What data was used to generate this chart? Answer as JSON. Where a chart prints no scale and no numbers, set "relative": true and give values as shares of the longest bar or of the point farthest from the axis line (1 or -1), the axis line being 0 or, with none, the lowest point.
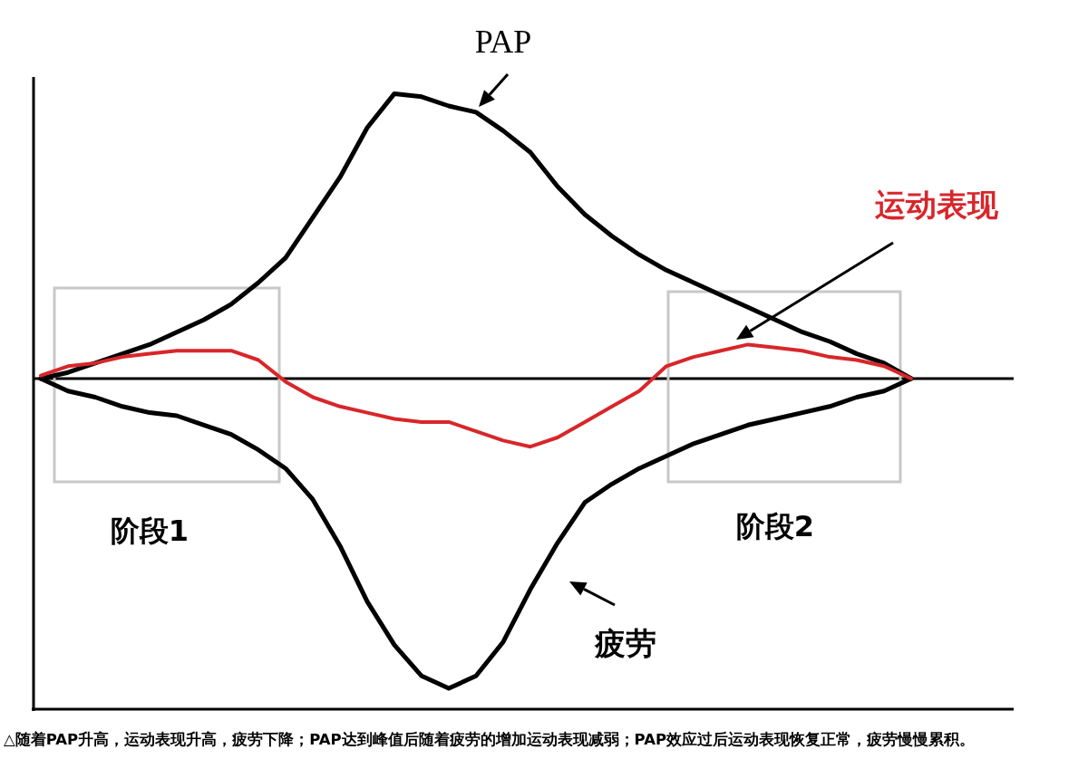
{
  "chart_data": {
    "type": "line",
    "relative": true,
    "categories": [
      null,
      null,
      null,
      null,
      null,
      null,
      null,
      null,
      null,
      null,
      null,
      null,
      null,
      null,
      null,
      null,
      null,
      null,
      null,
      null,
      null,
      null,
      null,
      null,
      null,
      null,
      null,
      null,
      null,
      null,
      null,
      null,
      null
    ],
    "series": [
      {
        "name": "PAP",
        "color": "#000000",
        "values": [
          0,
          0.02,
          0.05,
          0.08,
          0.11,
          0.15,
          0.19,
          0.24,
          0.31,
          0.39,
          0.52,
          0.65,
          0.81,
          0.92,
          0.91,
          0.88,
          0.86,
          0.8,
          0.73,
          0.62,
          0.53,
          0.46,
          0.4,
          0.35,
          0.31,
          0.27,
          0.23,
          0.19,
          0.15,
          0.12,
          0.08,
          0.05,
          0
        ]
      },
      {
        "name": "运动表现",
        "color": "#d8262b",
        "values": [
          0.01,
          0.04,
          0.05,
          0.07,
          0.08,
          0.09,
          0.09,
          0.09,
          0.06,
          -0.01,
          -0.06,
          -0.09,
          -0.11,
          -0.13,
          -0.14,
          -0.14,
          -0.17,
          -0.2,
          -0.22,
          -0.19,
          -0.14,
          -0.09,
          -0.04,
          0.04,
          0.07,
          0.09,
          0.11,
          0.1,
          0.09,
          0.07,
          0.06,
          0.04,
          0
        ]
      },
      {
        "name": "疲劳",
        "color": "#000000",
        "values": [
          0,
          -0.04,
          -0.06,
          -0.09,
          -0.11,
          -0.12,
          -0.15,
          -0.18,
          -0.23,
          -0.29,
          -0.39,
          -0.54,
          -0.72,
          -0.86,
          -0.96,
          -1,
          -0.96,
          -0.85,
          -0.68,
          -0.53,
          -0.4,
          -0.34,
          -0.29,
          -0.25,
          -0.21,
          -0.18,
          -0.15,
          -0.13,
          -0.11,
          -0.09,
          -0.06,
          -0.04,
          0
        ]
      }
    ],
    "annotations": [
      "阶段1",
      "阶段2",
      "△随着PAP升高，运动表现升高，疲劳下降；PAP达到峰值后随着疲劳的增加运动表现减弱；PAP效应过后运动表现恢复正常，疲劳慢慢累积。"
    ]
  }
}
